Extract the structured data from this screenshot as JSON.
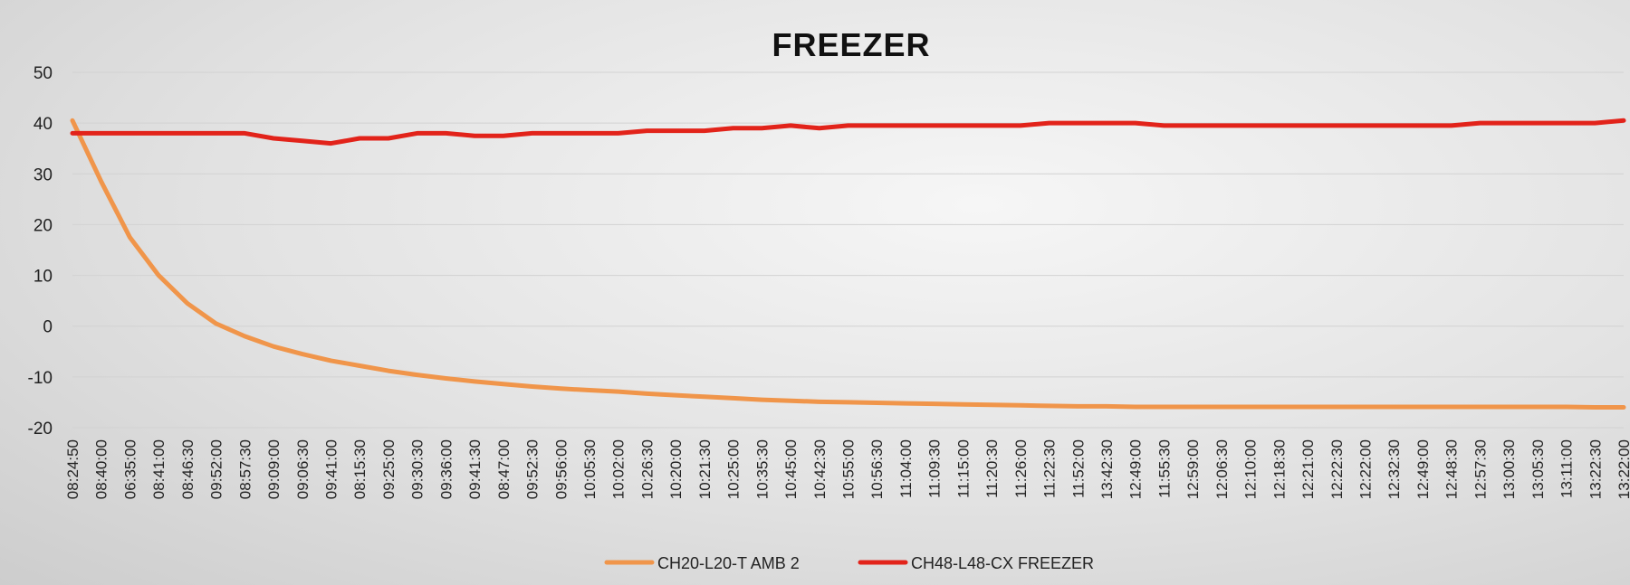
{
  "chart_data": {
    "type": "line",
    "title": "FREEZER",
    "xlabel": "",
    "ylabel": "",
    "ylim": [
      -20,
      50
    ],
    "y_ticks": [
      50,
      40,
      30,
      20,
      10,
      0,
      -10,
      -20
    ],
    "grid": true,
    "legend_position": "bottom-center",
    "x": [
      "08:24:50",
      "08:40:00",
      "06:35:00",
      "08:41:00",
      "08:46:30",
      "09:52:00",
      "08:57:30",
      "09:09:00",
      "09:06:30",
      "09:41:00",
      "08:15:30",
      "09:25:00",
      "09:30:30",
      "09:36:00",
      "09:41:30",
      "08:47:00",
      "09:52:30",
      "09:56:00",
      "10:05:30",
      "10:02:00",
      "10:26:30",
      "10:20:00",
      "10:21:30",
      "10:25:00",
      "10:35:30",
      "10:45:00",
      "10:42:30",
      "10:55:00",
      "10:56:30",
      "11:04:00",
      "11:09:30",
      "11:15:00",
      "11:20:30",
      "11:26:00",
      "11:22:30",
      "11:52:00",
      "13:42:30",
      "12:49:00",
      "11:55:30",
      "12:59:00",
      "12:06:30",
      "12:10:00",
      "12:18:30",
      "12:21:00",
      "12:22:30",
      "12:22:00",
      "12:32:30",
      "12:49:00",
      "12:48:30",
      "12:57:30",
      "13:00:30",
      "13:05:30",
      "13:11:00",
      "13:22:30",
      "13:22:00"
    ],
    "series": [
      {
        "name": "CH20-L20-T AMB 2",
        "color": "#f0954a",
        "values": [
          40.5,
          28.5,
          17.5,
          10,
          4.5,
          0.5,
          -2,
          -4,
          -5.5,
          -6.8,
          -7.8,
          -8.8,
          -9.6,
          -10.3,
          -10.9,
          -11.4,
          -11.9,
          -12.3,
          -12.6,
          -12.9,
          -13.3,
          -13.6,
          -13.9,
          -14.2,
          -14.5,
          -14.7,
          -14.9,
          -15,
          -15.1,
          -15.2,
          -15.3,
          -15.4,
          -15.5,
          -15.6,
          -15.7,
          -15.8,
          -15.8,
          -15.9,
          -15.9,
          -15.9,
          -15.9,
          -15.9,
          -15.9,
          -15.9,
          -15.9,
          -15.9,
          -15.9,
          -15.9,
          -15.9,
          -15.9,
          -15.9,
          -15.9,
          -15.9,
          -16,
          -16
        ]
      },
      {
        "name": "CH48-L48-CX FREEZER",
        "color": "#e2231a",
        "values": [
          38,
          38,
          38,
          38,
          38,
          38,
          38,
          37,
          36.5,
          36,
          37,
          37,
          38,
          38,
          37.5,
          37.5,
          38,
          38,
          38,
          38,
          38.5,
          38.5,
          38.5,
          39,
          39,
          39.5,
          39,
          39.5,
          39.5,
          39.5,
          39.5,
          39.5,
          39.5,
          39.5,
          40,
          40,
          40,
          40,
          39.5,
          39.5,
          39.5,
          39.5,
          39.5,
          39.5,
          39.5,
          39.5,
          39.5,
          39.5,
          39.5,
          40,
          40,
          40,
          40,
          40,
          40.5
        ]
      }
    ]
  }
}
